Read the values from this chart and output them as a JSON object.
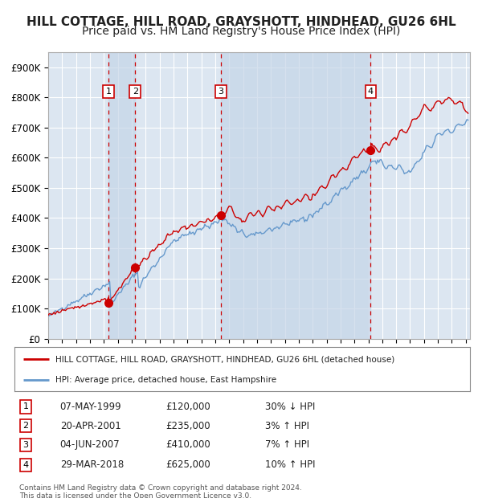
{
  "title": "HILL COTTAGE, HILL ROAD, GRAYSHOTT, HINDHEAD, GU26 6HL",
  "subtitle": "Price paid vs. HM Land Registry's House Price Index (HPI)",
  "background_color": "#ffffff",
  "plot_bg_color": "#dce6f1",
  "grid_color": "#ffffff",
  "sale_prices": [
    120000,
    235000,
    410000,
    625000
  ],
  "sale_labels": [
    "1",
    "2",
    "3",
    "4"
  ],
  "sale_info": [
    {
      "label": "1",
      "date": "07-MAY-1999",
      "price": "£120,000",
      "pct": "30%",
      "dir": "↓"
    },
    {
      "label": "2",
      "date": "20-APR-2001",
      "price": "£235,000",
      "pct": "3%",
      "dir": "↑"
    },
    {
      "label": "3",
      "date": "04-JUN-2007",
      "price": "£410,000",
      "pct": "7%",
      "dir": "↑"
    },
    {
      "label": "4",
      "date": "29-MAR-2018",
      "price": "£625,000",
      "pct": "10%",
      "dir": "↑"
    }
  ],
  "legend_line1": "HILL COTTAGE, HILL ROAD, GRAYSHOTT, HINDHEAD, GU26 6HL (detached house)",
  "legend_line2": "HPI: Average price, detached house, East Hampshire",
  "footer": "Contains HM Land Registry data © Crown copyright and database right 2024.\nThis data is licensed under the Open Government Licence v3.0.",
  "yticks": [
    0,
    100000,
    200000,
    300000,
    400000,
    500000,
    600000,
    700000,
    800000,
    900000
  ],
  "red_line_color": "#cc0000",
  "blue_line_color": "#6699cc",
  "dot_color": "#cc0000",
  "dashed_vline_color": "#cc0000",
  "shade_color": "#c5d5e8",
  "title_fontsize": 11,
  "subtitle_fontsize": 10,
  "tick_fontsize": 8.5
}
